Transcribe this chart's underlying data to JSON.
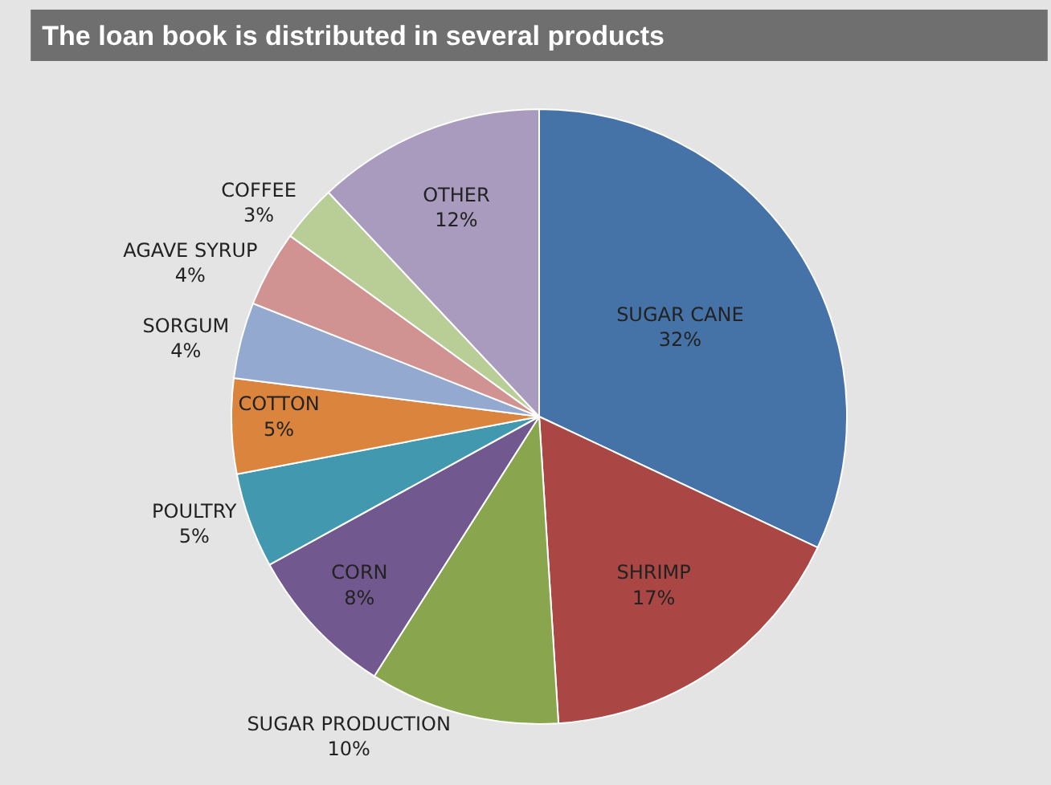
{
  "chart_data": {
    "type": "pie",
    "title": "The loan book is distributed in several products",
    "categories": [
      "SUGAR CANE",
      "SHRIMP",
      "SUGAR PRODUCTION",
      "CORN",
      "POULTRY",
      "COTTON",
      "SORGUM",
      "AGAVE SYRUP",
      "COFFEE",
      "OTHER"
    ],
    "values": [
      32,
      17,
      10,
      8,
      5,
      5,
      4,
      4,
      3,
      12
    ],
    "value_labels": [
      "32%",
      "17%",
      "10%",
      "8%",
      "5%",
      "5%",
      "4%",
      "4%",
      "3%",
      "12%"
    ],
    "colors": [
      "#4572a7",
      "#aa4643",
      "#89a54e",
      "#71588f",
      "#4198af",
      "#db843d",
      "#93a9cf",
      "#d19392",
      "#b9cd96",
      "#a99bbd"
    ],
    "legend": false
  }
}
